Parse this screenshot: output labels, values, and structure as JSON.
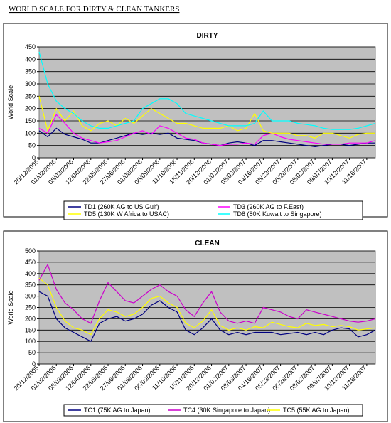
{
  "title": "WORLD SCALE FOR DIRTY & CLEAN TANKERS",
  "chart_data": [
    {
      "type": "line",
      "title": "DIRTY",
      "y_label": "World Scale",
      "categories": [
        "20/12/2005",
        null,
        "01/02/2006",
        null,
        "08/03/2006",
        null,
        "12/04/2006",
        null,
        "22/05/2006",
        null,
        "27/06/2006",
        null,
        "01/08/2006",
        null,
        "06/09/2006",
        null,
        "11/10/2006",
        null,
        "15/11/2006",
        null,
        "20/12/2006",
        null,
        "01/02/2007",
        null,
        "08/03/2007",
        null,
        "04/16/2007",
        null,
        "05/23/2007",
        null,
        "06/28/2007",
        null,
        "08/02/2007",
        null,
        "09/07/2007",
        null,
        "10/12/2007",
        null,
        "11/16/2007",
        null
      ],
      "ylim": [
        0,
        450
      ],
      "yticks": [
        0,
        50,
        100,
        150,
        200,
        250,
        300,
        350,
        400,
        450
      ],
      "grid": true,
      "series": [
        {
          "name": "TD1 (260K AG to US Gulf)",
          "color": "#000080",
          "values": [
            110,
            85,
            120,
            95,
            85,
            75,
            60,
            60,
            70,
            80,
            90,
            100,
            95,
            100,
            95,
            100,
            80,
            75,
            70,
            60,
            55,
            50,
            60,
            65,
            60,
            50,
            70,
            70,
            65,
            60,
            55,
            50,
            45,
            50,
            55,
            55,
            50,
            55,
            60,
            60
          ]
        },
        {
          "name": "TD3 (260K AG to F.East)",
          "color": "#ff00ff",
          "values": [
            120,
            100,
            175,
            140,
            100,
            80,
            70,
            60,
            65,
            70,
            85,
            100,
            110,
            95,
            130,
            120,
            100,
            80,
            75,
            60,
            55,
            50,
            55,
            55,
            60,
            55,
            90,
            100,
            85,
            75,
            70,
            65,
            60,
            55,
            55,
            55,
            60,
            60,
            60,
            70
          ]
        },
        {
          "name": "TD5 (130K W Africa to USAC)",
          "color": "#ffff00",
          "values": [
            250,
            110,
            200,
            150,
            190,
            130,
            110,
            140,
            150,
            130,
            160,
            140,
            170,
            200,
            180,
            160,
            140,
            140,
            130,
            120,
            120,
            120,
            130,
            110,
            120,
            180,
            110,
            100,
            100,
            100,
            90,
            90,
            80,
            100,
            100,
            90,
            80,
            95,
            100,
            100
          ]
        },
        {
          "name": "TD8 (80K Kuwait to Singapore)",
          "color": "#00ffff",
          "values": [
            430,
            300,
            230,
            200,
            180,
            150,
            130,
            120,
            120,
            130,
            140,
            150,
            200,
            220,
            240,
            240,
            220,
            180,
            170,
            160,
            150,
            140,
            130,
            130,
            130,
            140,
            190,
            150,
            150,
            150,
            140,
            135,
            130,
            120,
            115,
            115,
            115,
            120,
            130,
            140
          ]
        }
      ]
    },
    {
      "type": "line",
      "title": "CLEAN",
      "y_label": "World Scale",
      "categories": [
        "20/12/2005",
        null,
        "01/02/2006",
        null,
        "08/03/2006",
        null,
        "12/04/2006",
        null,
        "22/05/2006",
        null,
        "27/06/2006",
        null,
        "01/08/2006",
        null,
        "06/09/2006",
        null,
        "11/10/2006",
        null,
        "15/11/2006",
        null,
        "20/12/2006",
        null,
        "01/02/2007",
        null,
        "08/03/2007",
        null,
        "04/16/2007",
        null,
        "05/23/2007",
        null,
        "06/28/2007",
        null,
        "08/02/2007",
        null,
        "09/07/2007",
        null,
        "10/12/2007",
        null,
        "11/16/2007",
        null
      ],
      "ylim": [
        0,
        500
      ],
      "yticks": [
        0,
        50,
        100,
        150,
        200,
        250,
        300,
        350,
        400,
        450,
        500
      ],
      "grid": true,
      "series": [
        {
          "name": "TC1 (75K AG to Japan)",
          "color": "#000080",
          "values": [
            320,
            300,
            200,
            160,
            140,
            120,
            100,
            180,
            200,
            210,
            190,
            200,
            220,
            260,
            280,
            250,
            230,
            150,
            130,
            160,
            200,
            150,
            130,
            140,
            130,
            140,
            140,
            140,
            130,
            135,
            140,
            130,
            140,
            130,
            150,
            160,
            155,
            120,
            130,
            150
          ]
        },
        {
          "name": "TC4 (30K Singapore to Japan)",
          "color": "#cc00cc",
          "values": [
            370,
            440,
            330,
            270,
            240,
            200,
            180,
            280,
            360,
            320,
            280,
            270,
            300,
            330,
            350,
            320,
            300,
            240,
            210,
            270,
            320,
            230,
            190,
            180,
            190,
            180,
            250,
            240,
            230,
            210,
            200,
            240,
            230,
            220,
            210,
            200,
            190,
            185,
            190,
            200
          ]
        },
        {
          "name": "TC5 (55K AG to Japan)",
          "color": "#ffff00",
          "values": [
            380,
            350,
            250,
            190,
            160,
            150,
            130,
            200,
            240,
            230,
            210,
            220,
            250,
            290,
            300,
            270,
            250,
            180,
            160,
            190,
            240,
            170,
            150,
            160,
            150,
            165,
            160,
            185,
            175,
            165,
            160,
            180,
            170,
            175,
            165,
            170,
            165,
            150,
            155,
            160
          ]
        }
      ]
    }
  ]
}
